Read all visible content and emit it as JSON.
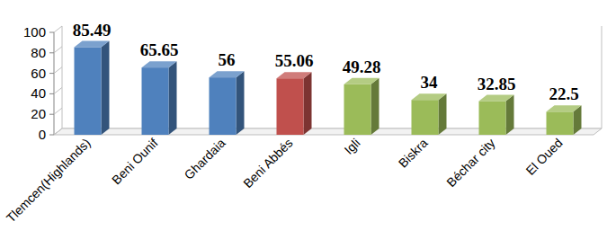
{
  "chart_data": {
    "type": "bar",
    "categories": [
      "Tlemcen(Highlands)",
      "Beni Ounif",
      "Ghardaia",
      "Beni Abbés",
      "Igli",
      "Biskra",
      "Béchar city",
      "El Oued"
    ],
    "values": [
      85.49,
      65.65,
      56,
      55.06,
      49.28,
      34,
      32.85,
      22.5
    ],
    "colors": [
      "#4f81bd",
      "#4f81bd",
      "#4f81bd",
      "#c0504d",
      "#9bbb59",
      "#9bbb59",
      "#9bbb59",
      "#9bbb59"
    ],
    "ylim": [
      0,
      100
    ],
    "yticks": [
      0,
      20,
      40,
      60,
      80,
      100
    ],
    "grid": false,
    "data_labels": true
  }
}
